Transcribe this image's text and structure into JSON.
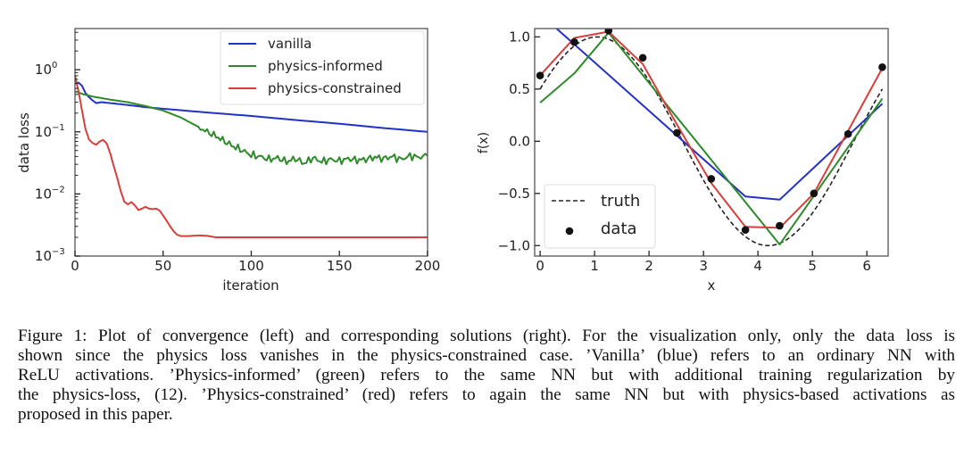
{
  "chart_data": [
    {
      "type": "line",
      "title": "",
      "xlabel": "iteration",
      "ylabel": "data loss",
      "xlim": [
        0,
        200
      ],
      "ylim": [
        0.001,
        4.6
      ],
      "yscale": "log",
      "xticks": [
        "0",
        "50",
        "100",
        "150",
        "200"
      ],
      "xtick_values": [
        0,
        50,
        100,
        150,
        200
      ],
      "yticks": [
        {
          "value": 1,
          "base": "10",
          "exp": "0"
        },
        {
          "value": 0.1,
          "base": "10",
          "exp": "−1"
        },
        {
          "value": 0.01,
          "base": "10",
          "exp": "−2"
        },
        {
          "value": 0.001,
          "base": "10",
          "exp": "−3"
        }
      ],
      "legend_position": "top-right",
      "series": [
        {
          "name": "vanilla",
          "color": "#2233c4",
          "x": [
            0,
            2,
            4,
            6,
            8,
            10,
            12,
            15,
            20,
            25,
            30,
            40,
            50,
            75,
            100,
            125,
            150,
            175,
            200
          ],
          "y": [
            0.6,
            0.62,
            0.55,
            0.42,
            0.36,
            0.32,
            0.29,
            0.3,
            0.29,
            0.28,
            0.27,
            0.25,
            0.235,
            0.205,
            0.18,
            0.155,
            0.135,
            0.115,
            0.1
          ]
        },
        {
          "name": "physics-informed",
          "color": "#2e8a2a",
          "x": [
            0,
            5,
            10,
            20,
            30,
            40,
            50,
            60,
            70,
            75,
            80,
            85,
            90,
            95,
            100,
            105,
            110,
            115,
            120,
            125,
            130,
            135,
            140,
            145,
            150,
            155,
            160,
            165,
            170,
            175,
            180,
            185,
            190,
            195,
            200
          ],
          "y": [
            0.45,
            0.4,
            0.37,
            0.33,
            0.3,
            0.26,
            0.22,
            0.17,
            0.12,
            0.1,
            0.085,
            0.07,
            0.058,
            0.05,
            0.042,
            0.04,
            0.036,
            0.038,
            0.033,
            0.037,
            0.031,
            0.038,
            0.033,
            0.036,
            0.034,
            0.037,
            0.035,
            0.036,
            0.039,
            0.037,
            0.04,
            0.036,
            0.041,
            0.039,
            0.041
          ],
          "noise": true
        },
        {
          "name": "physics-constrained",
          "color": "#d6403a",
          "x": [
            0,
            2,
            4,
            6,
            8,
            10,
            12,
            14,
            16,
            18,
            20,
            22,
            24,
            26,
            28,
            30,
            32,
            34,
            36,
            38,
            40,
            42,
            44,
            46,
            48,
            50,
            52,
            54,
            56,
            58,
            60,
            65,
            70,
            75,
            80,
            90,
            100,
            150,
            200
          ],
          "y": [
            0.8,
            0.45,
            0.22,
            0.11,
            0.075,
            0.066,
            0.062,
            0.07,
            0.074,
            0.065,
            0.045,
            0.028,
            0.018,
            0.011,
            0.0075,
            0.0068,
            0.0074,
            0.0065,
            0.0055,
            0.0058,
            0.0062,
            0.0058,
            0.0057,
            0.0058,
            0.0054,
            0.0045,
            0.0037,
            0.003,
            0.0025,
            0.0022,
            0.0021,
            0.0021,
            0.00215,
            0.00212,
            0.002,
            0.002,
            0.002,
            0.002,
            0.002
          ]
        }
      ]
    },
    {
      "type": "line",
      "title": "",
      "xlabel": "x",
      "ylabel": "f(x)",
      "xlim": [
        -0.1,
        6.39
      ],
      "ylim": [
        -1.1,
        1.08
      ],
      "xticks": [
        "0",
        "1",
        "2",
        "3",
        "4",
        "5",
        "6"
      ],
      "xtick_values": [
        0,
        1,
        2,
        3,
        4,
        5,
        6
      ],
      "yticks": [
        "1.0",
        "0.5",
        "0.0",
        "−0.5",
        "−1.0"
      ],
      "ytick_values": [
        1.0,
        0.5,
        0.0,
        -0.5,
        -1.0
      ],
      "legend_position": "lower-left",
      "truth": {
        "name": "truth",
        "color": "#222222",
        "function": "sin(x + 0.524)",
        "x_range": [
          0,
          6.283
        ]
      },
      "data_points": {
        "name": "data",
        "color": "#111111",
        "x": [
          0,
          0.628,
          1.257,
          1.885,
          2.513,
          3.142,
          3.77,
          4.398,
          5.027,
          5.655,
          6.283
        ],
        "y": [
          0.63,
          0.95,
          1.06,
          0.8,
          0.08,
          -0.36,
          -0.85,
          -0.81,
          -0.5,
          0.07,
          0.71
        ]
      },
      "series": [
        {
          "name": "vanilla",
          "color": "#2233c4",
          "x": [
            0,
            3.77,
            4.398,
            6.283
          ],
          "y": [
            1.22,
            -0.53,
            -0.56,
            0.36
          ]
        },
        {
          "name": "physics-informed",
          "color": "#2e8a2a",
          "x": [
            0,
            0.628,
            1.257,
            4.398,
            6.283
          ],
          "y": [
            0.37,
            0.65,
            1.04,
            -0.99,
            0.41
          ]
        },
        {
          "name": "physics-constrained",
          "color": "#d6403a",
          "x": [
            0,
            0.628,
            1.257,
            1.885,
            2.513,
            3.142,
            3.77,
            4.398,
            5.027,
            5.655,
            6.283
          ],
          "y": [
            0.63,
            0.99,
            1.05,
            0.74,
            0.16,
            -0.4,
            -0.82,
            -0.83,
            -0.5,
            0.1,
            0.7
          ]
        }
      ]
    }
  ],
  "caption": {
    "lines": [
      "Figure 1: Plot of convergence (left) and corresponding solutions (right). For the visualization only, only the data loss is",
      "shown since the physics loss vanishes in the physics-constrained case. ’Vanilla’ (blue) refers to an ordinary NN with",
      "ReLU activations. ’Physics-informed’ (green) refers to the same NN but with additional training regularization by",
      "the physics-loss, (12). ’Physics-constrained’ (red) refers to again the same NN but with physics-based activations as",
      "proposed in this paper."
    ]
  }
}
